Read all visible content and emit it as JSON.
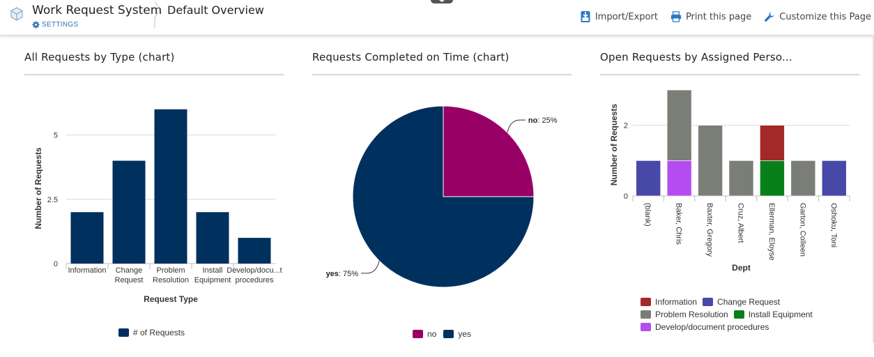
{
  "header": {
    "app_title": "Work Request System",
    "settings_label": "SETTINGS",
    "page_title": "Default Overview",
    "actions": [
      {
        "label": "Import/Export",
        "icon": "import-export-icon"
      },
      {
        "label": "Print this page",
        "icon": "printer-icon"
      },
      {
        "label": "Customize this Page",
        "icon": "wrench-icon"
      }
    ]
  },
  "panels": {
    "by_type": {
      "title": "All Requests by Type (chart)",
      "chart_data": {
        "type": "bar",
        "categories": [
          "Information",
          "Change Request",
          "Problem Resolution",
          "Install Equipment",
          "Develop/document procedures"
        ],
        "category_labels": [
          [
            "Information"
          ],
          [
            "Change",
            "Request"
          ],
          [
            "Problem",
            "Resolution"
          ],
          [
            "Install",
            "Equipment"
          ],
          [
            "Develop/docu...t",
            "procedures"
          ]
        ],
        "series": [
          {
            "name": "# of Requests",
            "values": [
              2,
              4,
              6,
              2,
              1
            ],
            "color": "#00305e"
          }
        ],
        "xlabel": "Request Type",
        "ylabel": "Number of Requests",
        "yticks": [
          0,
          2.5,
          5
        ],
        "ytick_labels": [
          "0",
          "2.5",
          "5"
        ],
        "ylim": [
          0,
          6.4
        ],
        "grid": true,
        "legend": "bottom"
      }
    },
    "on_time": {
      "title": "Requests Completed on Time (chart)",
      "chart_data": {
        "type": "pie",
        "slices": [
          {
            "name": "no",
            "value": 25,
            "label": "no",
            "pct": ": 25%",
            "color": "#990066"
          },
          {
            "name": "yes",
            "value": 75,
            "label": "yes",
            "pct": ": 75%",
            "color": "#00305e"
          }
        ],
        "legend": "bottom"
      }
    },
    "by_person": {
      "title": "Open Requests by Assigned Perso...",
      "chart_data": {
        "type": "bar",
        "stacked": true,
        "categories": [
          "(blank)",
          "Baker, Chris",
          "Baxter, Gregory",
          "Cruz, Albert",
          "Ellerman, Eloyse",
          "Garton, Colleen",
          "Oshoku, Toni"
        ],
        "series": [
          {
            "name": "Information",
            "values": [
              0,
              0,
              0,
              0,
              1,
              0,
              0
            ],
            "color": "#a32828"
          },
          {
            "name": "Change Request",
            "values": [
              1,
              0,
              0,
              0,
              0,
              0,
              1
            ],
            "color": "#4848a8"
          },
          {
            "name": "Problem Resolution",
            "values": [
              0,
              2,
              2,
              1,
              0,
              1,
              0
            ],
            "color": "#7a7e77"
          },
          {
            "name": "Install Equipment",
            "values": [
              0,
              0,
              0,
              0,
              1,
              0,
              0
            ],
            "color": "#08801a"
          },
          {
            "name": "Develop/document procedures",
            "values": [
              0,
              1,
              0,
              0,
              0,
              0,
              0
            ],
            "color": "#b44df0"
          }
        ],
        "stack_order": [
          4,
          2,
          1,
          3,
          0
        ],
        "xlabel": "Dept",
        "ylabel": "Number of Requests",
        "yticks": [
          0,
          2
        ],
        "ylim": [
          0,
          3.1
        ],
        "grid": true,
        "legend": "bottom"
      }
    }
  }
}
